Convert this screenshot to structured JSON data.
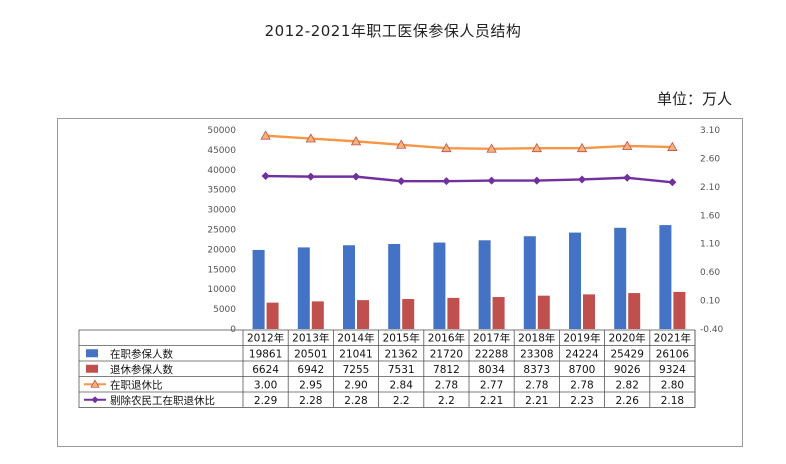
{
  "title": "2012-2021年职工医保参保人员结构",
  "unit": "单位：万人",
  "chart_data": {
    "type": "bar",
    "categories": [
      "2012年",
      "2013年",
      "2014年",
      "2015年",
      "2016年",
      "2017年",
      "2018年",
      "2019年",
      "2020年",
      "2021年"
    ],
    "series": [
      {
        "name": "在职参保人数",
        "kind": "bar",
        "axis": "left",
        "color": "#4472C4",
        "values": [
          19861,
          20501,
          21041,
          21362,
          21720,
          22288,
          23308,
          24224,
          25429,
          26106
        ],
        "labels": [
          "19861",
          "20501",
          "21041",
          "21362",
          "21720",
          "22288",
          "23308",
          "24224",
          "25429",
          "26106"
        ]
      },
      {
        "name": "退休参保人数",
        "kind": "bar",
        "axis": "left",
        "color": "#C0504D",
        "values": [
          6624,
          6942,
          7255,
          7531,
          7812,
          8034,
          8373,
          8700,
          9026,
          9324
        ],
        "labels": [
          "6624",
          "6942",
          "7255",
          "7531",
          "7812",
          "8034",
          "8373",
          "8700",
          "9026",
          "9324"
        ]
      },
      {
        "name": "在职退休比",
        "kind": "line",
        "axis": "right",
        "color": "#F79646",
        "marker": "triangle",
        "values": [
          3.0,
          2.95,
          2.9,
          2.84,
          2.78,
          2.77,
          2.78,
          2.78,
          2.82,
          2.8
        ],
        "labels": [
          "3.00",
          "2.95",
          "2.90",
          "2.84",
          "2.78",
          "2.77",
          "2.78",
          "2.78",
          "2.82",
          "2.80"
        ]
      },
      {
        "name": "剔除农民工在职退休比",
        "kind": "line",
        "axis": "right",
        "color": "#7030A0",
        "marker": "diamond",
        "values": [
          2.29,
          2.28,
          2.28,
          2.2,
          2.2,
          2.21,
          2.21,
          2.23,
          2.26,
          2.18
        ],
        "labels": [
          "2.29",
          "2.28",
          "2.28",
          "2.2",
          "2.2",
          "2.21",
          "2.21",
          "2.23",
          "2.26",
          "2.18"
        ]
      }
    ],
    "y_left": {
      "min": 0,
      "max": 50000,
      "ticks": [
        "0",
        "5000",
        "10000",
        "15000",
        "20000",
        "25000",
        "30000",
        "35000",
        "40000",
        "45000",
        "50000"
      ]
    },
    "y_right": {
      "min": -0.4,
      "max": 3.1,
      "ticks": [
        "-0.40",
        "0.10",
        "0.60",
        "1.10",
        "1.60",
        "2.10",
        "2.60",
        "3.10"
      ]
    },
    "grid": false,
    "legend": "table-below"
  }
}
